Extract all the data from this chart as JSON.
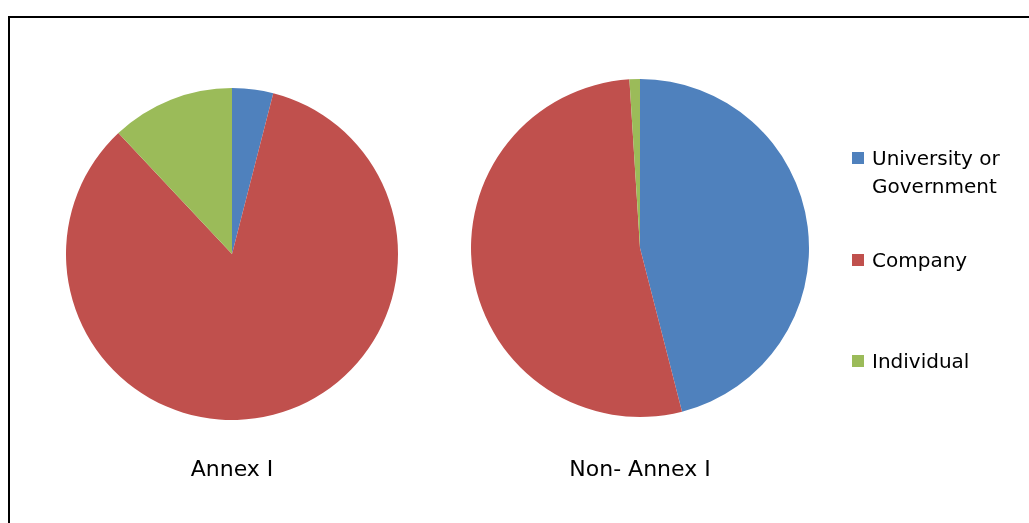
{
  "chart_data": {
    "type": "pie",
    "categories": [
      "University or Government",
      "Company",
      "Individual"
    ],
    "colors": [
      "#4f81bd",
      "#c0504d",
      "#9bbb59"
    ],
    "legend": "right",
    "series": [
      {
        "name": "Annex I",
        "values": [
          4,
          84,
          12
        ]
      },
      {
        "name": "Non- Annex I",
        "values": [
          46,
          53,
          1
        ]
      }
    ]
  }
}
